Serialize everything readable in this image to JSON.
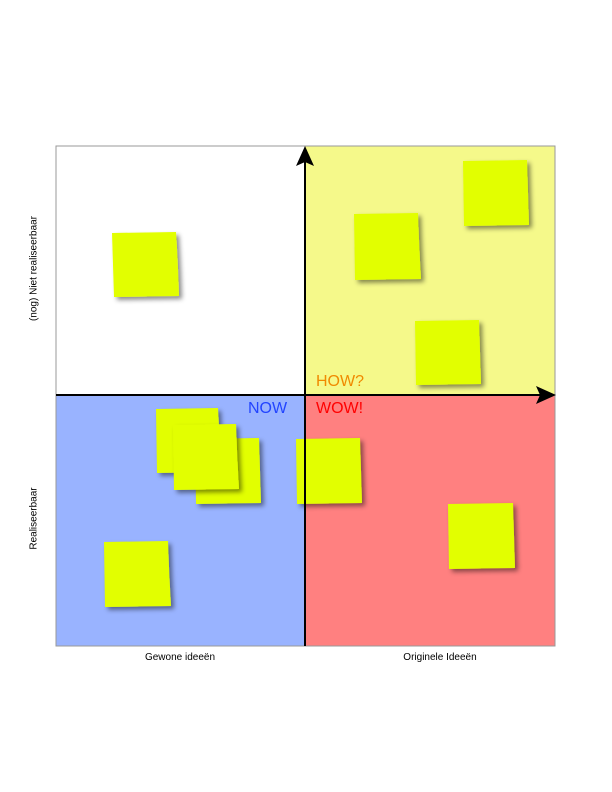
{
  "axes": {
    "y_top_label": "(nog) Niet realiseerbaar",
    "y_bottom_label": "Realiseerbaar",
    "x_left_label": "Gewone ideeën",
    "x_right_label": "Originele Ideeën"
  },
  "quadrants": {
    "top_left": {
      "color": "#ffffff"
    },
    "top_right": {
      "label": "HOW?",
      "color": "#f5f98a",
      "label_color": "#f08a00"
    },
    "bottom_left": {
      "label": "NOW",
      "color": "#99b3ff",
      "label_color": "#2244ff"
    },
    "bottom_right": {
      "label": "WOW!",
      "color": "#ff8080",
      "label_color": "#ff0000"
    }
  },
  "sticky_note_color": "#e2ff00"
}
